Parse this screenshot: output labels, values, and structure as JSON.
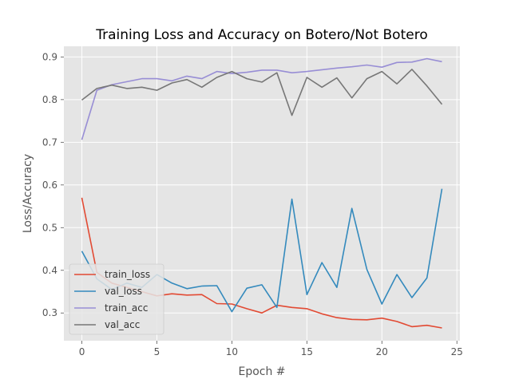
{
  "chart_data": {
    "type": "line",
    "title": "Training Loss and Accuracy on Botero/Not Botero",
    "xlabel": "Epoch #",
    "ylabel": "Loss/Accuracy",
    "xlim": [
      -1.2,
      25.2
    ],
    "ylim": [
      0.235,
      0.925
    ],
    "xticks": [
      0,
      5,
      10,
      15,
      20,
      25
    ],
    "yticks": [
      0.3,
      0.4,
      0.5,
      0.6,
      0.7,
      0.8,
      0.9
    ],
    "xtick_labels": [
      "0",
      "5",
      "10",
      "15",
      "20",
      "25"
    ],
    "ytick_labels": [
      "0.3",
      "0.4",
      "0.5",
      "0.6",
      "0.7",
      "0.8",
      "0.9"
    ],
    "grid": true,
    "legend_position": "lower-left",
    "x": [
      0,
      1,
      2,
      3,
      4,
      5,
      6,
      7,
      8,
      9,
      10,
      11,
      12,
      13,
      14,
      15,
      16,
      17,
      18,
      19,
      20,
      21,
      22,
      23,
      24
    ],
    "series": [
      {
        "name": "train_loss",
        "color": "#E24A33",
        "values": [
          0.57,
          0.395,
          0.37,
          0.36,
          0.35,
          0.34,
          0.345,
          0.342,
          0.343,
          0.322,
          0.321,
          0.31,
          0.3,
          0.318,
          0.313,
          0.31,
          0.298,
          0.289,
          0.285,
          0.284,
          0.288,
          0.28,
          0.268,
          0.271,
          0.265
        ]
      },
      {
        "name": "val_loss",
        "color": "#348ABD",
        "values": [
          0.445,
          0.38,
          0.355,
          0.37,
          0.36,
          0.39,
          0.37,
          0.357,
          0.363,
          0.364,
          0.303,
          0.358,
          0.366,
          0.313,
          0.567,
          0.343,
          0.418,
          0.36,
          0.545,
          0.402,
          0.321,
          0.39,
          0.336,
          0.382,
          0.591
        ]
      },
      {
        "name": "train_acc",
        "color": "#988ED5",
        "values": [
          0.706,
          0.822,
          0.835,
          0.842,
          0.849,
          0.849,
          0.844,
          0.855,
          0.849,
          0.866,
          0.861,
          0.864,
          0.869,
          0.869,
          0.863,
          0.866,
          0.87,
          0.874,
          0.877,
          0.881,
          0.876,
          0.887,
          0.888,
          0.896,
          0.889
        ]
      },
      {
        "name": "val_acc",
        "color": "#777777",
        "values": [
          0.799,
          0.826,
          0.834,
          0.826,
          0.829,
          0.822,
          0.839,
          0.847,
          0.829,
          0.852,
          0.866,
          0.849,
          0.841,
          0.863,
          0.763,
          0.852,
          0.829,
          0.851,
          0.804,
          0.849,
          0.866,
          0.837,
          0.871,
          0.832,
          0.789
        ]
      }
    ]
  }
}
